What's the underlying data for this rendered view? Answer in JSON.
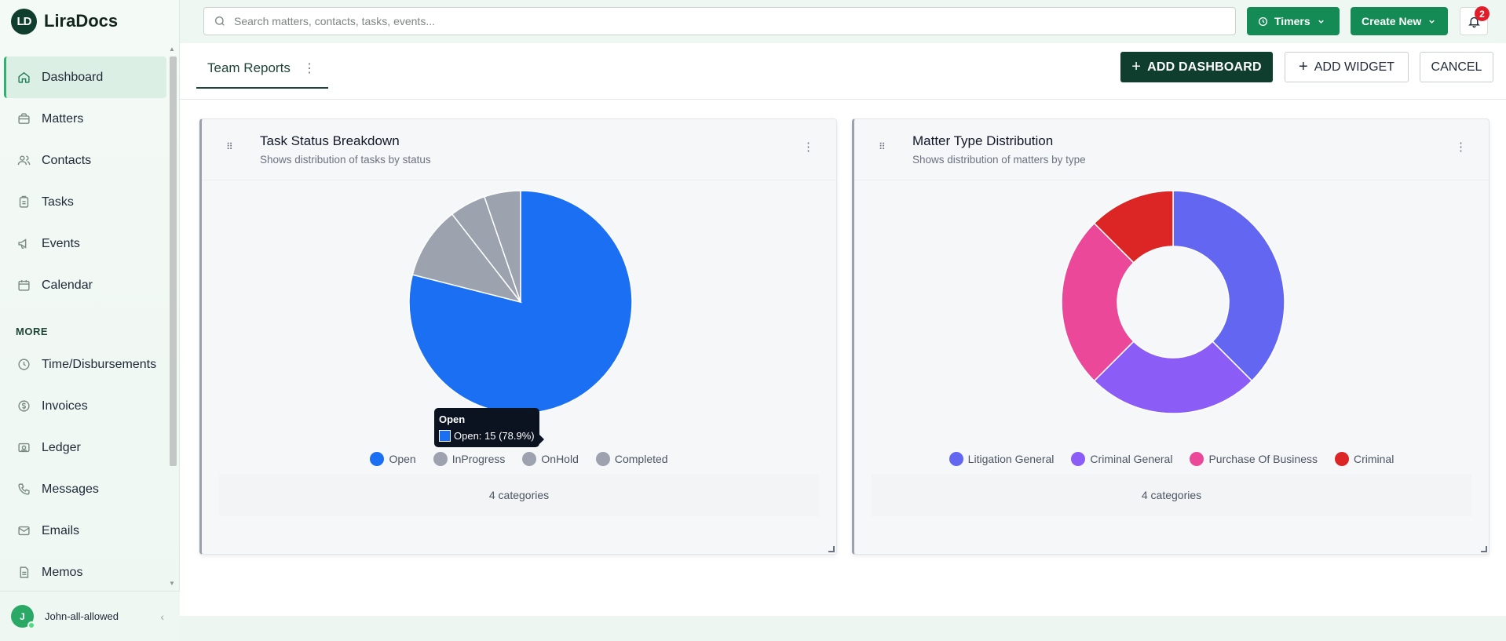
{
  "app": {
    "name": "LiraDocs",
    "logo_text": "LD"
  },
  "search": {
    "placeholder": "Search matters, contacts, tasks, events..."
  },
  "topbar": {
    "timers_label": "Timers",
    "create_label": "Create New",
    "notifications_count": "2"
  },
  "sidebar": {
    "items": [
      {
        "label": "Dashboard",
        "icon": "home-icon",
        "active": true
      },
      {
        "label": "Matters",
        "icon": "briefcase-icon"
      },
      {
        "label": "Contacts",
        "icon": "users-icon"
      },
      {
        "label": "Tasks",
        "icon": "clipboard-icon"
      },
      {
        "label": "Events",
        "icon": "megaphone-icon"
      },
      {
        "label": "Calendar",
        "icon": "calendar-icon"
      }
    ],
    "more_label": "MORE",
    "more_items": [
      {
        "label": "Time/Disbursements",
        "icon": "clock-icon"
      },
      {
        "label": "Invoices",
        "icon": "dollar-icon"
      },
      {
        "label": "Ledger",
        "icon": "ledger-icon"
      },
      {
        "label": "Messages",
        "icon": "phone-icon"
      },
      {
        "label": "Emails",
        "icon": "mail-icon"
      },
      {
        "label": "Memos",
        "icon": "memo-icon"
      }
    ],
    "user": {
      "initial": "J",
      "name": "John-all-allowed"
    }
  },
  "dashboard": {
    "tab_label": "Team Reports",
    "add_dashboard_label": "ADD DASHBOARD",
    "add_widget_label": "ADD WIDGET",
    "cancel_label": "CANCEL"
  },
  "widgets": [
    {
      "title": "Task Status Breakdown",
      "subtitle": "Shows distribution of tasks by status",
      "footer": "4 categories",
      "tooltip": {
        "title": "Open",
        "text": "Open: 15 (78.9%)"
      }
    },
    {
      "title": "Matter Type Distribution",
      "subtitle": "Shows distribution of matters by type",
      "footer": "4 categories"
    }
  ],
  "chart_data": [
    {
      "type": "pie",
      "categories": [
        "Open",
        "InProgress",
        "OnHold",
        "Completed"
      ],
      "values": [
        15,
        2,
        1,
        1
      ],
      "colors": [
        "#1a6ff2",
        "#9ca3af",
        "#9ca3af",
        "#9ca3af"
      ],
      "legend_position": "bottom"
    },
    {
      "type": "pie",
      "donut": true,
      "categories": [
        "Litigation General",
        "Criminal General",
        "Purchase Of Business",
        "Criminal"
      ],
      "values": [
        3,
        2,
        2,
        1
      ],
      "colors": [
        "#6366f1",
        "#8b5cf6",
        "#ec4899",
        "#dc2626"
      ],
      "legend_position": "bottom"
    }
  ]
}
